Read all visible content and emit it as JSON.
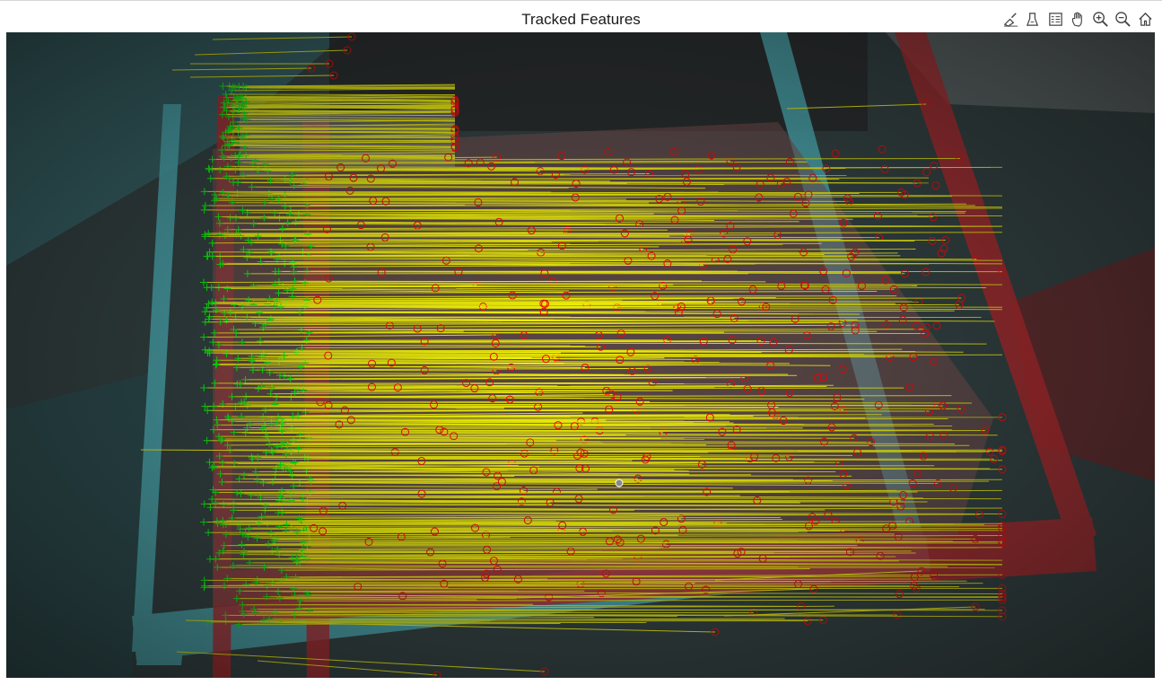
{
  "figure": {
    "title": "Tracked Features"
  },
  "toolbar": {
    "tools": [
      {
        "name": "brush-icon",
        "tooltip": "Brush"
      },
      {
        "name": "data-tips-icon",
        "tooltip": "Data Tips"
      },
      {
        "name": "legend-icon",
        "tooltip": "Legend"
      },
      {
        "name": "pan-icon",
        "tooltip": "Pan"
      },
      {
        "name": "zoom-in-icon",
        "tooltip": "Zoom In"
      },
      {
        "name": "zoom-out-icon",
        "tooltip": "Zoom Out"
      },
      {
        "name": "home-icon",
        "tooltip": "Restore View"
      }
    ]
  },
  "image": {
    "description_colors": {
      "frame_left": "#3fb8c4",
      "frame_right": "#c8262a",
      "background": "#2d2f30",
      "track_line": "#ffff00",
      "feature_current": "#00ff00",
      "feature_previous": "#ff0000"
    }
  }
}
